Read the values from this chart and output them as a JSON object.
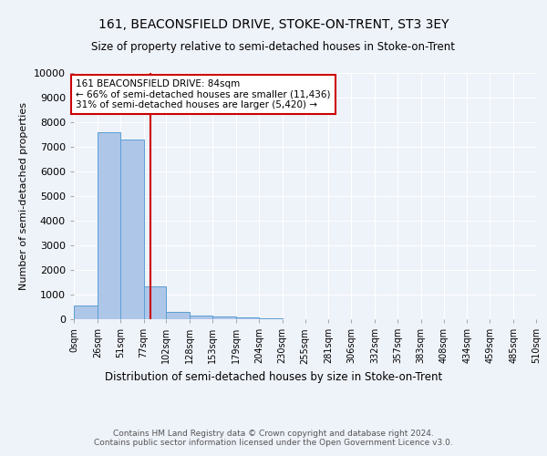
{
  "title": "161, BEACONSFIELD DRIVE, STOKE-ON-TRENT, ST3 3EY",
  "subtitle": "Size of property relative to semi-detached houses in Stoke-on-Trent",
  "xlabel": "Distribution of semi-detached houses by size in Stoke-on-Trent",
  "ylabel": "Number of semi-detached properties",
  "bin_edges": [
    0,
    26,
    51,
    77,
    102,
    128,
    153,
    179,
    204,
    230,
    255,
    281,
    306,
    332,
    357,
    383,
    408,
    434,
    459,
    485,
    510
  ],
  "bar_heights": [
    550,
    7600,
    7300,
    1350,
    300,
    150,
    100,
    70,
    50,
    0,
    0,
    0,
    0,
    0,
    0,
    0,
    0,
    0,
    0,
    0
  ],
  "bar_color": "#aec6e8",
  "bar_edge_color": "#5a9fd4",
  "property_sqm": 84,
  "property_line_color": "#cc0000",
  "ylim": [
    0,
    10000
  ],
  "yticks": [
    0,
    1000,
    2000,
    3000,
    4000,
    5000,
    6000,
    7000,
    8000,
    9000,
    10000
  ],
  "annotation_title": "161 BEACONSFIELD DRIVE: 84sqm",
  "annotation_line1": "← 66% of semi-detached houses are smaller (11,436)",
  "annotation_line2": "31% of semi-detached houses are larger (5,420) →",
  "annotation_box_color": "#ffffff",
  "annotation_box_edge": "#cc0000",
  "bg_color": "#eef2f9",
  "grid_color": "#ffffff",
  "footer": "Contains HM Land Registry data © Crown copyright and database right 2024.\nContains public sector information licensed under the Open Government Licence v3.0."
}
